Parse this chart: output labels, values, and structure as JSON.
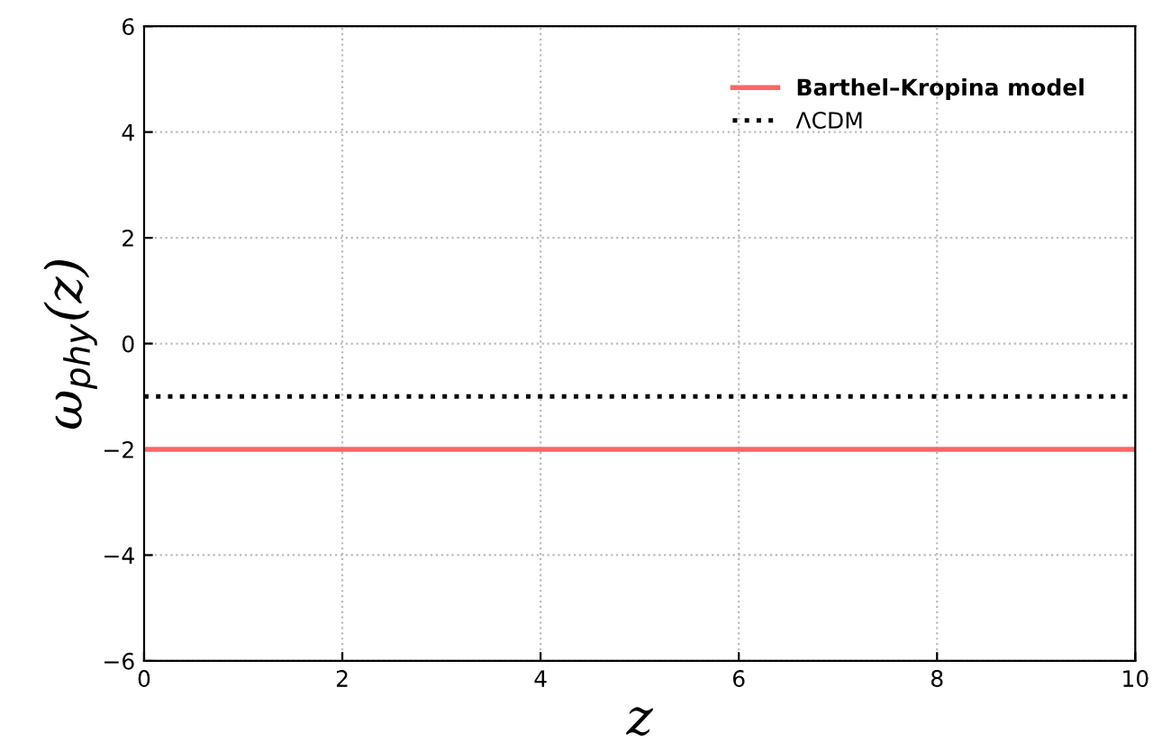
{
  "chart_data": {
    "type": "line",
    "xlabel": "z",
    "ylabel": "ω$_{phy}$(z)",
    "xlim": [
      0,
      10
    ],
    "ylim": [
      -6,
      6
    ],
    "xticks": [
      0,
      2,
      4,
      6,
      8,
      10
    ],
    "yticks": [
      -6,
      -4,
      -2,
      0,
      2,
      4,
      6
    ],
    "grid": true,
    "legend": "top right",
    "ref_lines": [
      {
        "axis": "y",
        "value": -2,
        "label": "Barthel–Kropina model",
        "color": "#ff6666",
        "line_style": "solid"
      },
      {
        "axis": "y",
        "value": -1,
        "label": "ΛCDM",
        "color": "#000000",
        "line_style": "dotted"
      }
    ]
  }
}
